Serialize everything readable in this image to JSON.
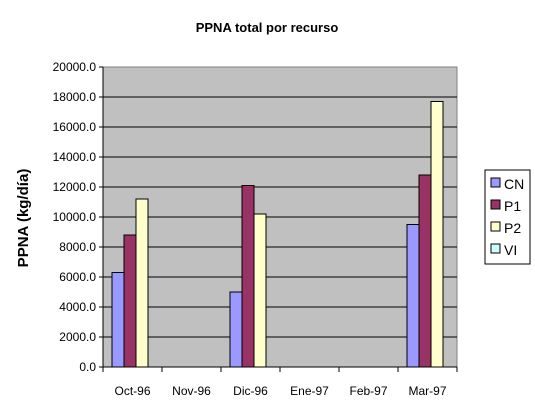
{
  "chart_data": {
    "type": "bar",
    "title": "PPNA total por recurso",
    "xlabel": "",
    "ylabel": "PPNA (kg/día)",
    "categories": [
      "Oct-96",
      "Nov-96",
      "Dic-96",
      "Ene-97",
      "Feb-97",
      "Mar-97"
    ],
    "series": [
      {
        "name": "CN",
        "values": [
          6300,
          null,
          5000,
          null,
          null,
          9500
        ],
        "color": "#9999ff"
      },
      {
        "name": "P1",
        "values": [
          8800,
          null,
          12100,
          null,
          null,
          12800
        ],
        "color": "#993366"
      },
      {
        "name": "P2",
        "values": [
          11200,
          null,
          10200,
          null,
          null,
          17700
        ],
        "color": "#ffffcc"
      },
      {
        "name": "VI",
        "values": [
          null,
          null,
          null,
          null,
          null,
          null
        ],
        "color": "#ccffff"
      }
    ],
    "ylim": [
      0,
      20000
    ],
    "yticks": [
      "0.0",
      "2000.0",
      "4000.0",
      "6000.0",
      "8000.0",
      "10000.0",
      "12000.0",
      "14000.0",
      "16000.0",
      "18000.0",
      "20000.0"
    ],
    "grid": true,
    "plot_background": "#c0c0c0",
    "legend_position": "right"
  }
}
